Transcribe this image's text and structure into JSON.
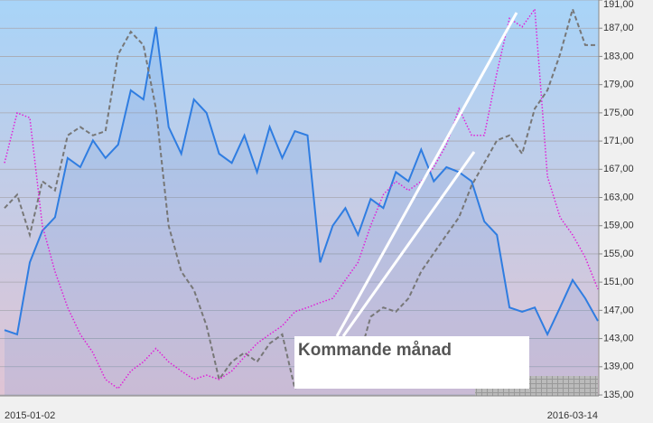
{
  "chart_data": {
    "type": "line",
    "annotation": "Kommande månad",
    "categories": [
      "2015-01-02",
      null,
      null,
      null,
      null,
      null,
      null,
      null,
      null,
      null,
      null,
      null,
      null,
      null,
      null,
      null,
      null,
      null,
      null,
      null,
      null,
      null,
      null,
      null,
      null,
      null,
      null,
      null,
      null,
      null,
      null,
      null,
      null,
      null,
      null,
      null,
      null,
      null,
      null,
      null,
      null,
      null,
      null,
      null,
      null,
      null,
      null,
      "2016-03-14"
    ],
    "series": [
      {
        "color": "#2f7de1",
        "style": "solid",
        "area": true,
        "values": [
          144.2,
          143.6,
          153.8,
          158.3,
          160.2,
          168.6,
          167.3,
          171.1,
          168.6,
          170.5,
          178.2,
          176.9,
          187.2,
          173,
          169.2,
          176.9,
          175,
          169.2,
          167.9,
          171.8,
          166.6,
          173,
          168.6,
          172.4,
          171.8,
          153.8,
          159,
          161.5,
          157.7,
          162.8,
          161.5,
          166.6,
          165.3,
          169.8,
          165.3,
          167.3,
          166.6,
          165.3,
          159.6,
          157.7,
          147.4,
          146.8,
          147.4,
          143.6,
          147.4,
          151.3,
          148.7,
          145.5
        ]
      },
      {
        "color": "#777777",
        "style": "dashed",
        "area": false,
        "values": [
          161.5,
          163.4,
          157.7,
          165.3,
          164,
          171.8,
          173,
          171.8,
          172.4,
          183.3,
          186.5,
          184.6,
          175.6,
          159,
          152.5,
          149.9,
          144.8,
          137.2,
          139.7,
          141,
          139.7,
          142.3,
          143.6,
          135.9,
          137.2,
          138.4,
          137.2,
          141,
          139.7,
          146.1,
          147.4,
          146.8,
          148.7,
          152.5,
          155.1,
          157.7,
          160.2,
          164.7,
          167.9,
          171.1,
          171.8,
          169.2,
          175.6,
          178.2,
          183.3,
          189.7,
          184.6,
          184.6
        ]
      },
      {
        "color": "#e020d8",
        "style": "dotted",
        "area": false,
        "values": [
          167.9,
          175,
          174.3,
          159,
          152.5,
          147.4,
          143.6,
          141,
          137.2,
          135.9,
          138.4,
          139.7,
          141.6,
          139.7,
          138.4,
          137.2,
          137.8,
          137.2,
          138.4,
          140.4,
          142.3,
          143.6,
          144.8,
          146.8,
          147.4,
          148.1,
          148.7,
          151.3,
          153.8,
          159,
          163.4,
          165.3,
          164,
          165.3,
          167.3,
          170.5,
          175.6,
          171.8,
          171.8,
          180.7,
          188.4,
          187.2,
          189.7,
          166,
          160.2,
          157.7,
          154.5,
          150
        ]
      }
    ],
    "ylim": [
      135,
      191
    ],
    "yticks": [
      {
        "value": 135,
        "label": "135,00"
      },
      {
        "value": 139,
        "label": "139,00"
      },
      {
        "value": 143,
        "label": "143,00"
      },
      {
        "value": 147,
        "label": "147,00"
      },
      {
        "value": 151,
        "label": "151,00"
      },
      {
        "value": 155,
        "label": "155,00"
      },
      {
        "value": 159,
        "label": "159,00"
      },
      {
        "value": 163,
        "label": "163,00"
      },
      {
        "value": 167,
        "label": "167,00"
      },
      {
        "value": 171,
        "label": "171,00"
      },
      {
        "value": 175,
        "label": "175,00"
      },
      {
        "value": 179,
        "label": "179,00"
      },
      {
        "value": 183,
        "label": "183,00"
      },
      {
        "value": 187,
        "label": "187,00"
      },
      {
        "value": 191,
        "label": "191,00"
      }
    ],
    "grid": true
  }
}
